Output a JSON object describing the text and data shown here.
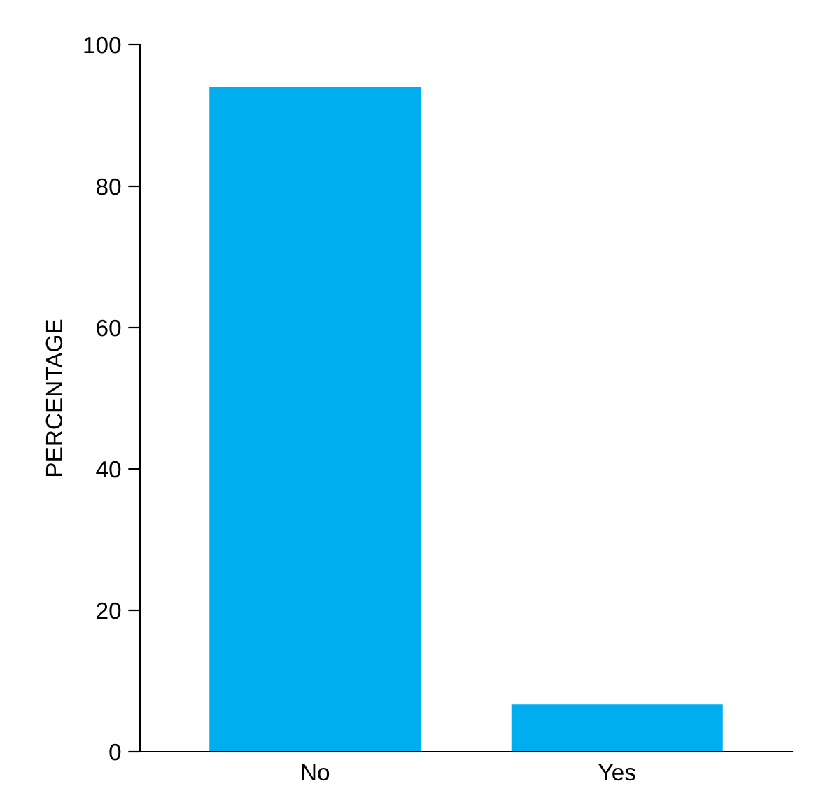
{
  "chart_data": {
    "type": "bar",
    "ylabel": "PERCENTAGE",
    "categories": [
      "No",
      "Yes"
    ],
    "values": [
      94,
      6.7
    ],
    "color": "#00aeef",
    "ylim": [
      0,
      100
    ],
    "yticks": [
      0,
      20,
      40,
      60,
      80,
      100
    ],
    "grid": false
  }
}
